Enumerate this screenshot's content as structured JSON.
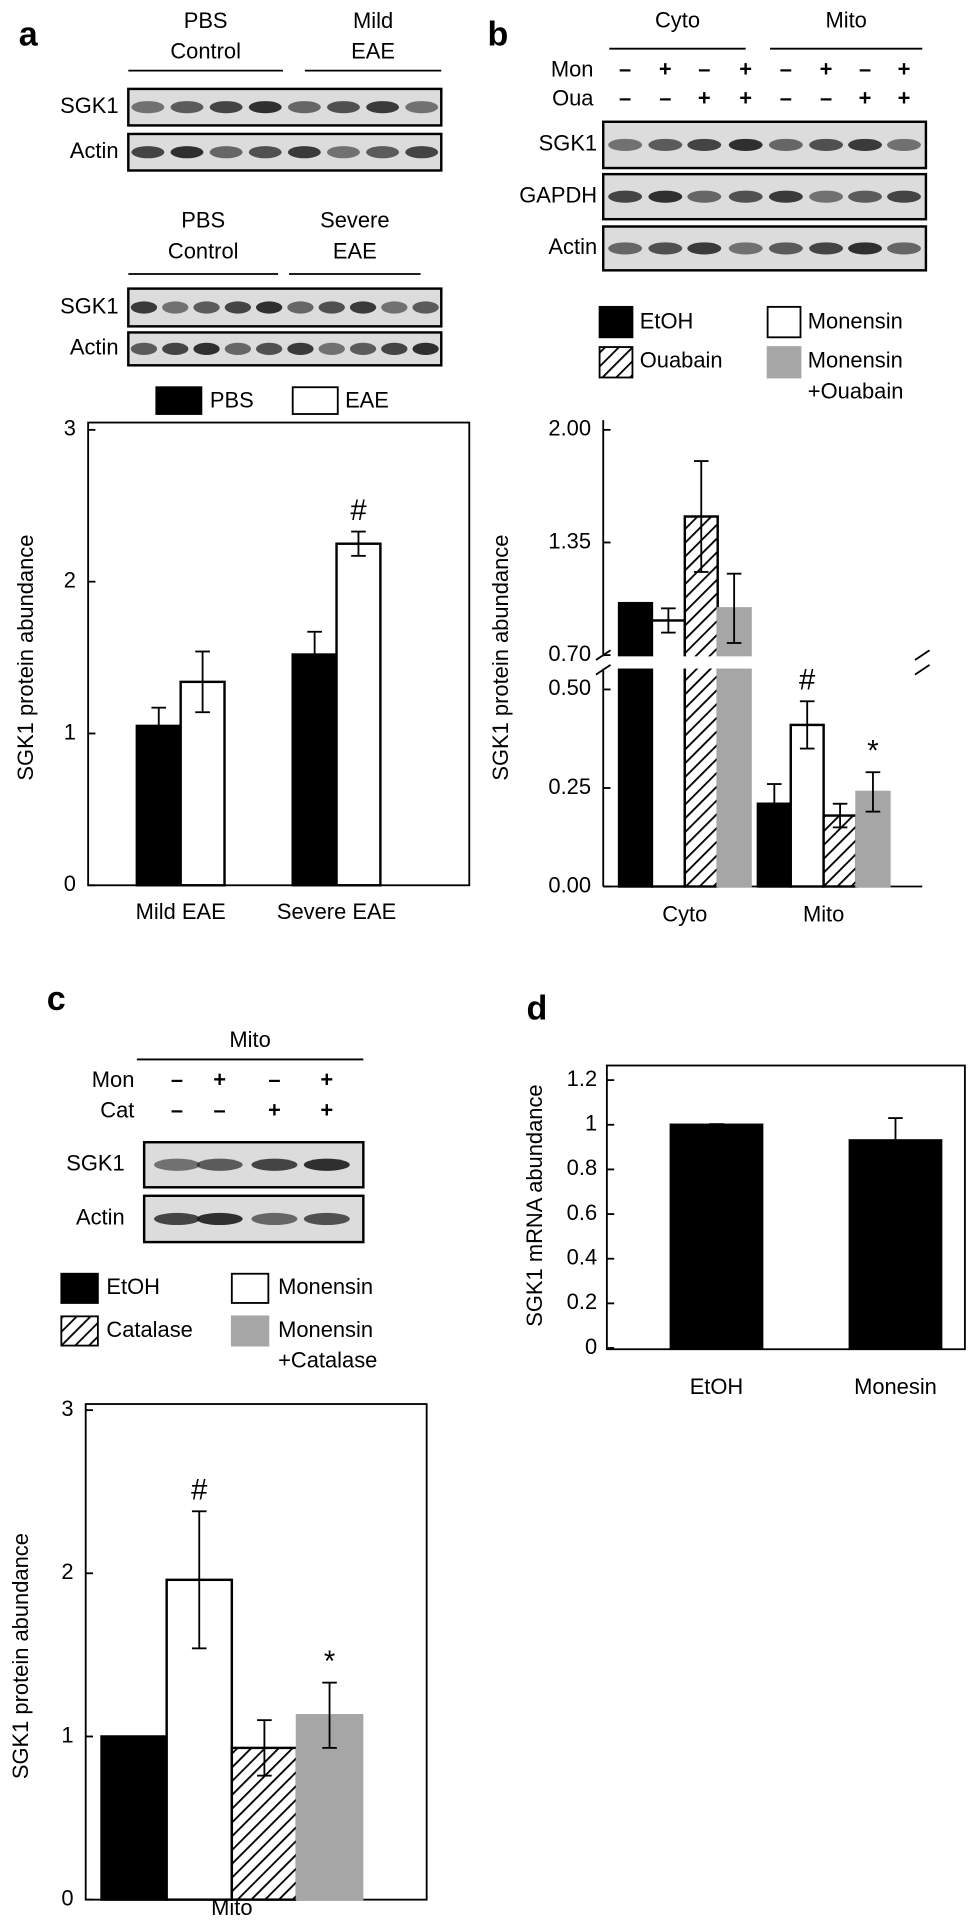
{
  "chart_data": [
    {
      "panel": "a",
      "type": "bar",
      "blots": [
        {
          "groups": [
            "PBS\nControl",
            "Mild\nEAE"
          ],
          "rows": [
            "SGK1",
            "Actin"
          ]
        },
        {
          "groups": [
            "PBS\nControl",
            "Severe\nEAE"
          ],
          "rows": [
            "SGK1",
            "Actin"
          ]
        }
      ],
      "categories": [
        "Mild EAE",
        "Severe EAE"
      ],
      "series": [
        {
          "name": "PBS",
          "color": "#000000",
          "values": [
            1.05,
            1.52
          ],
          "errors": [
            0.12,
            0.15
          ]
        },
        {
          "name": "EAE",
          "color": "#ffffff",
          "values": [
            1.34,
            2.25
          ],
          "errors": [
            0.2,
            0.08
          ],
          "significance": [
            null,
            "#"
          ]
        }
      ],
      "y_label": "SGK1 protein abundance",
      "ylim": [
        0,
        3
      ],
      "yticks": [
        0,
        1,
        2,
        3
      ]
    },
    {
      "panel": "b",
      "type": "bar",
      "blots": [
        {
          "groups": [
            "Cyto",
            "Mito"
          ],
          "treatments": [
            {
              "name": "Mon",
              "signs": [
                "–",
                "+",
                "–",
                "+",
                "–",
                "+",
                "–",
                "+"
              ]
            },
            {
              "name": "Oua",
              "signs": [
                "–",
                "–",
                "+",
                "+",
                "–",
                "–",
                "+",
                "+"
              ]
            }
          ],
          "rows": [
            "SGK1",
            "GAPDH",
            "Actin"
          ]
        }
      ],
      "categories": [
        "Cyto",
        "Mito"
      ],
      "series": [
        {
          "name": "EtOH",
          "color": "#000000",
          "values": [
            1.0,
            0.21
          ],
          "errors": [
            null,
            0.05
          ]
        },
        {
          "name": "Monensin",
          "color": "#ffffff",
          "values": [
            0.9,
            0.41
          ],
          "errors": [
            0.07,
            0.06
          ],
          "significance": [
            null,
            "#"
          ]
        },
        {
          "name": "Ouabain",
          "color": "#ffffff",
          "hatch": true,
          "values": [
            1.5,
            0.18
          ],
          "errors": [
            0.32,
            0.03
          ]
        },
        {
          "name": "Monensin\n+Ouabain",
          "color": "#a6a6a6",
          "values": [
            0.97,
            0.24
          ],
          "errors": [
            0.2,
            0.05
          ],
          "significance": [
            null,
            "*"
          ]
        }
      ],
      "y_label": "SGK1 protein abundance",
      "ylim": [
        0,
        2
      ],
      "ybreak": [
        0.55,
        0.7
      ],
      "yticks": [
        {
          "value": 0,
          "label": "0.00"
        },
        {
          "value": 0.25,
          "label": "0.25"
        },
        {
          "value": 0.5,
          "label": "0.50"
        },
        {
          "value": 0.7,
          "label": "0.70"
        },
        {
          "value": 1.35,
          "label": "1.35"
        },
        {
          "value": 2,
          "label": "2.00"
        }
      ]
    },
    {
      "panel": "c",
      "type": "bar",
      "blots": [
        {
          "groups": [
            "Mito"
          ],
          "treatments": [
            {
              "name": "Mon",
              "signs": [
                "–",
                "+",
                "–",
                "+"
              ]
            },
            {
              "name": "Cat",
              "signs": [
                "–",
                "–",
                "+",
                "+"
              ]
            }
          ],
          "rows": [
            "SGK1",
            "Actin"
          ]
        }
      ],
      "categories": [
        "Mito"
      ],
      "series": [
        {
          "name": "EtOH",
          "color": "#000000",
          "values": [
            1.0
          ],
          "errors": [
            null
          ]
        },
        {
          "name": "Monensin",
          "color": "#ffffff",
          "values": [
            1.96
          ],
          "errors": [
            0.42
          ],
          "significance": [
            "#"
          ]
        },
        {
          "name": "Catalase",
          "color": "#ffffff",
          "hatch": true,
          "values": [
            0.93
          ],
          "errors": [
            0.17
          ]
        },
        {
          "name": "Monensin\n+Catalase",
          "color": "#a6a6a6",
          "values": [
            1.13
          ],
          "errors": [
            0.2
          ],
          "significance": [
            "*"
          ]
        }
      ],
      "y_label": "SGK1 protein abundance",
      "ylim": [
        0,
        3
      ],
      "yticks": [
        0,
        1,
        2,
        3
      ]
    },
    {
      "panel": "d",
      "type": "bar",
      "categories": [
        "EtOH",
        "Monesin"
      ],
      "color": "#000000",
      "values": [
        1.0,
        0.93
      ],
      "errors": [
        0.003,
        0.1
      ],
      "y_label": "SGK1 mRNA abundance",
      "ylim": [
        0,
        1.2
      ],
      "yticks": [
        0,
        0.2,
        0.4,
        0.6,
        0.8,
        1,
        1.2
      ]
    }
  ]
}
